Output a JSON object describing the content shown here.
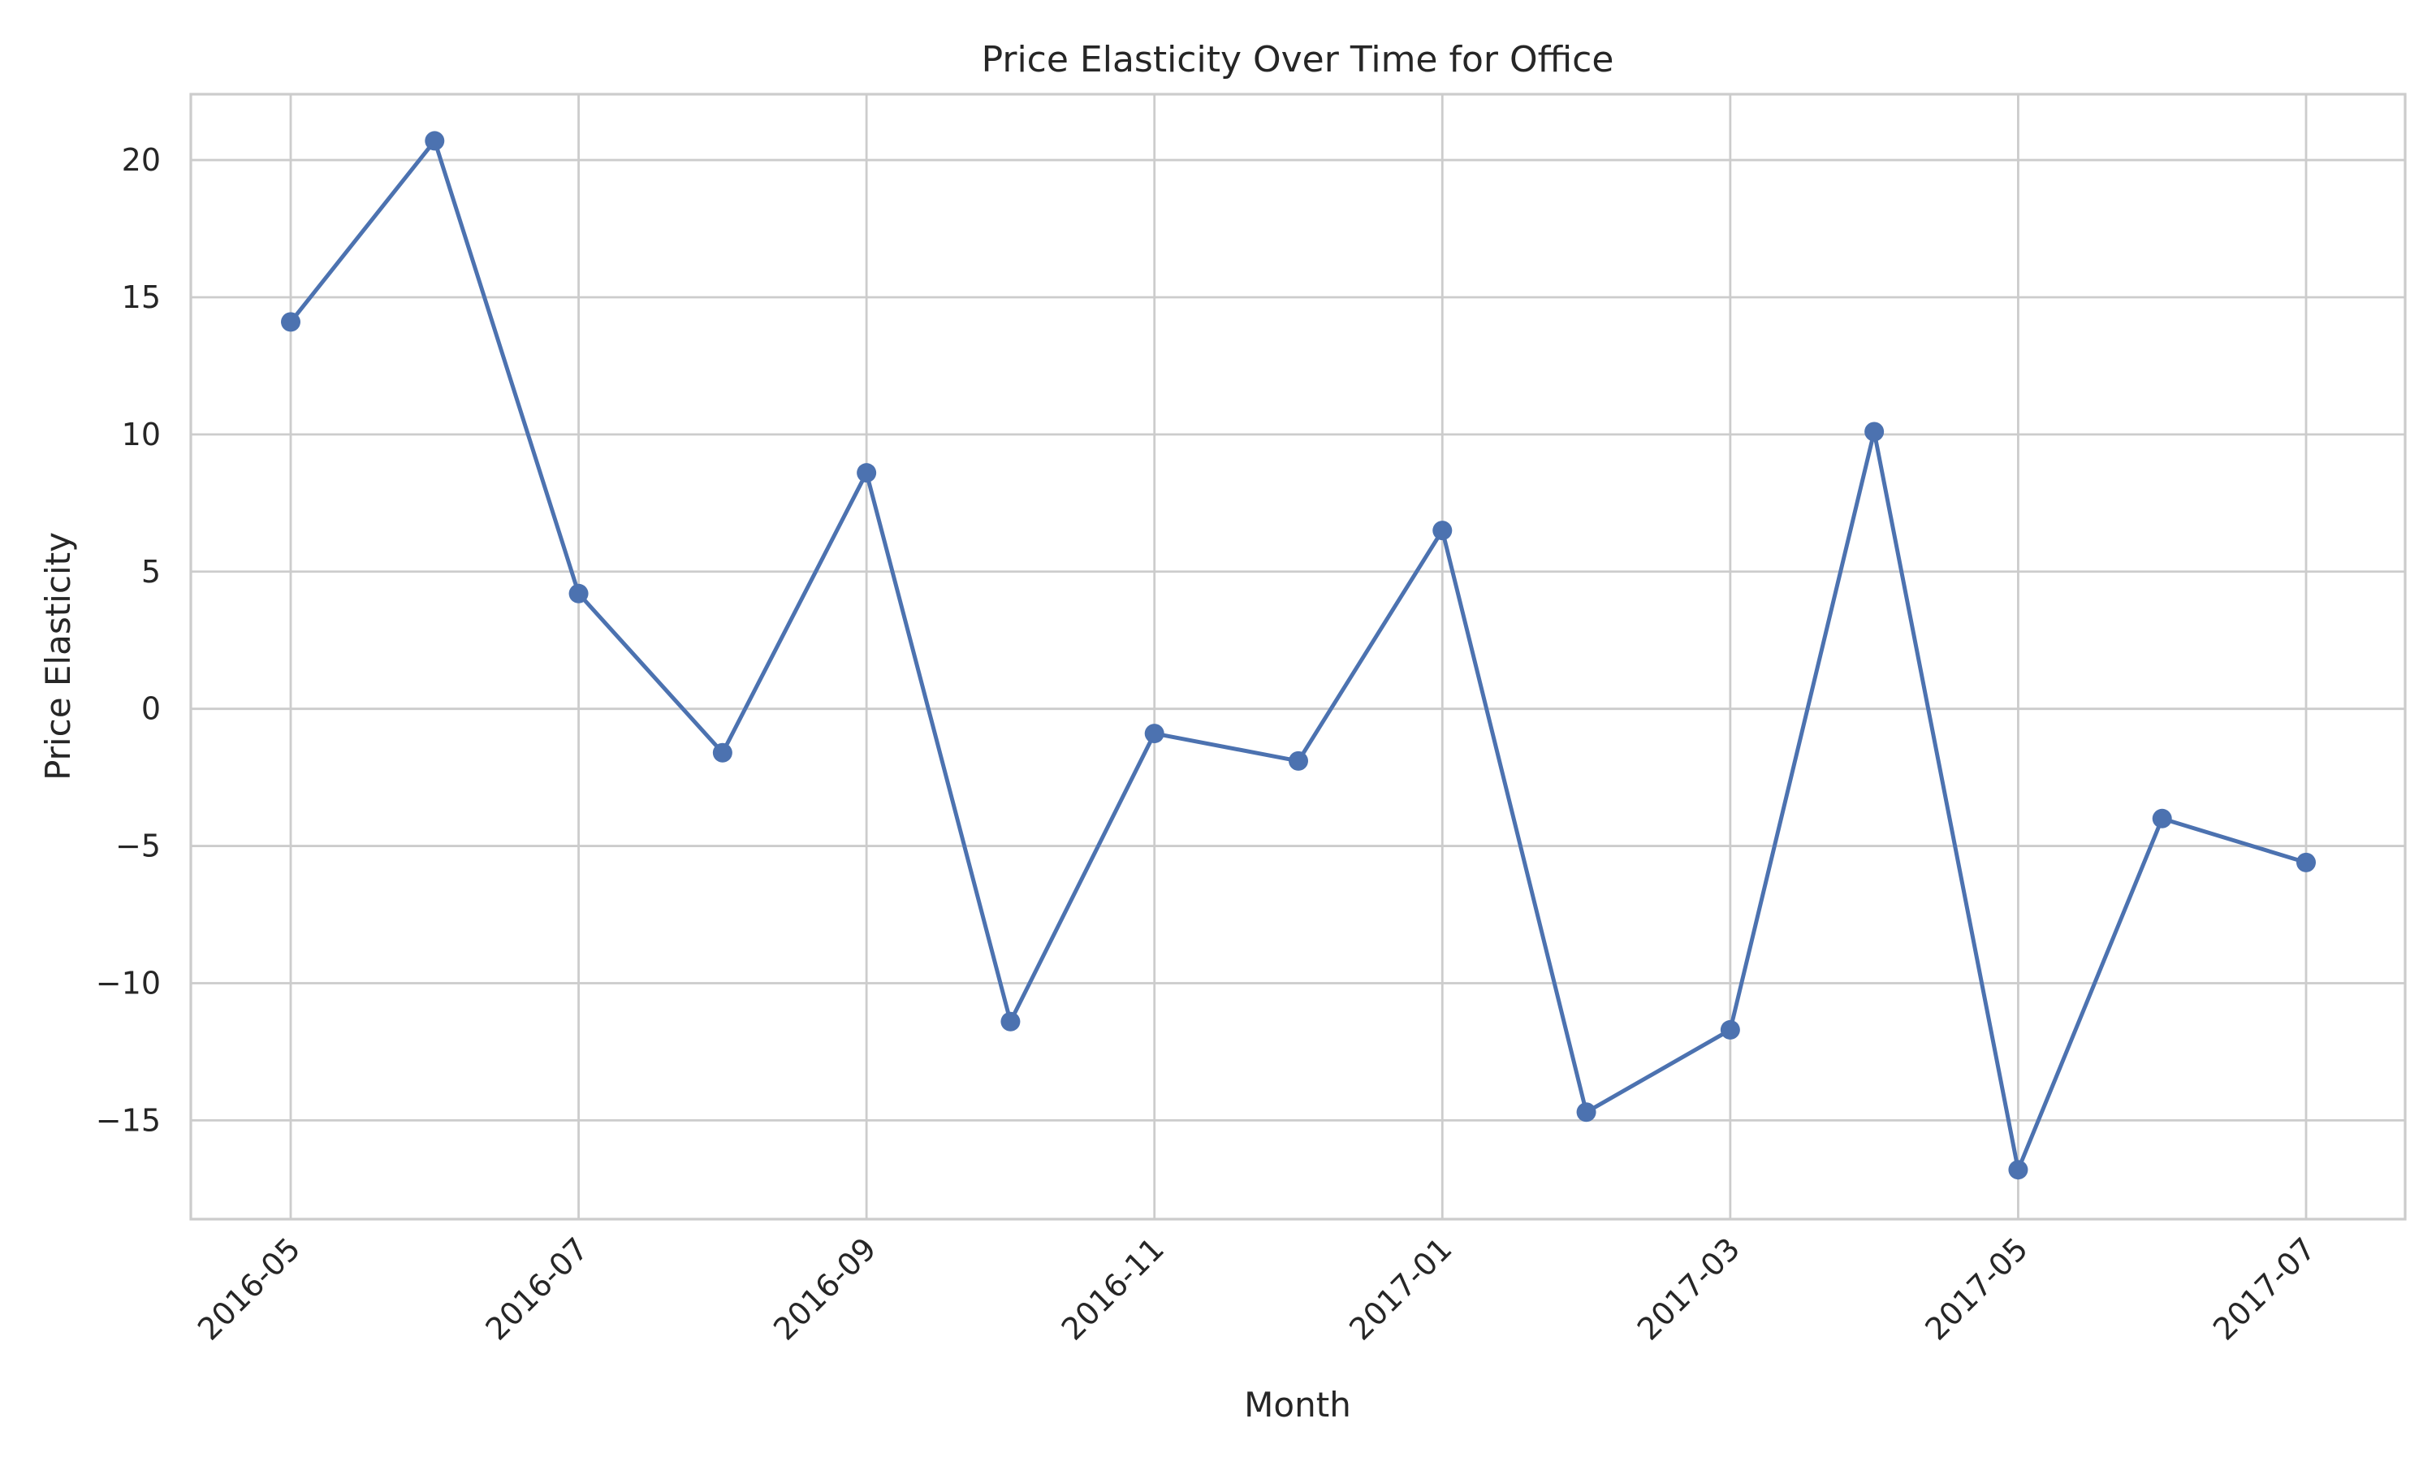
{
  "chart_data": {
    "type": "line",
    "title": "Price Elasticity Over Time for Office",
    "xlabel": "Month",
    "ylabel": "Price Elasticity",
    "x": [
      "2016-05",
      "2016-06",
      "2016-07",
      "2016-08",
      "2016-09",
      "2016-10",
      "2016-11",
      "2016-12",
      "2017-01",
      "2017-02",
      "2017-03",
      "2017-04",
      "2017-05",
      "2017-06",
      "2017-07"
    ],
    "series": [
      {
        "values": [
          14.1,
          20.7,
          4.2,
          -1.6,
          8.6,
          -11.4,
          -0.9,
          -1.9,
          6.5,
          -14.7,
          -11.7,
          10.1,
          -16.8,
          -4.0,
          -5.6
        ]
      }
    ],
    "x_ticks": [
      "2016-05",
      "2016-07",
      "2016-09",
      "2016-11",
      "2017-01",
      "2017-03",
      "2017-05",
      "2017-07"
    ],
    "y_ticks": [
      20,
      15,
      10,
      5,
      0,
      -5,
      -10,
      -15
    ],
    "y_tick_labels": [
      "20",
      "15",
      "10",
      "5",
      "0",
      "−5",
      "−10",
      "−15"
    ],
    "ylim": [
      -18.6,
      22.4
    ],
    "grid": true,
    "color": "#4c72b0"
  }
}
